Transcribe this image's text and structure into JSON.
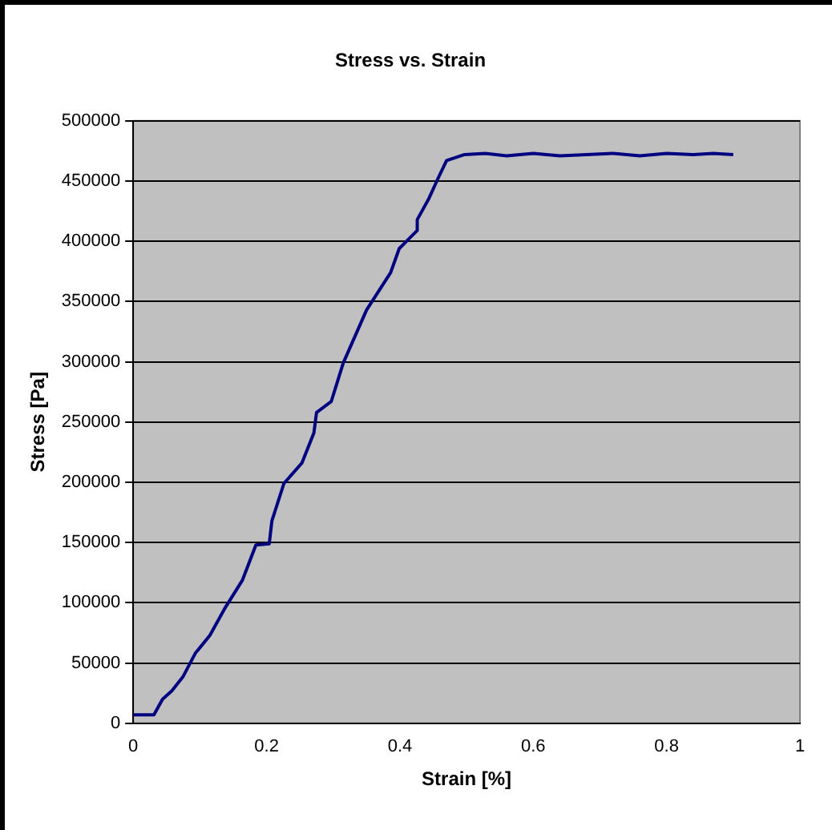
{
  "chart_data": {
    "type": "line",
    "title": "Stress vs. Strain",
    "xlabel": "Strain [%]",
    "ylabel": "Stress [Pa]",
    "x": [
      0,
      0.031,
      0.044,
      0.058,
      0.075,
      0.093,
      0.115,
      0.137,
      0.164,
      0.184,
      0.204,
      0.208,
      0.226,
      0.253,
      0.271,
      0.275,
      0.297,
      0.315,
      0.35,
      0.386,
      0.399,
      0.426,
      0.426,
      0.443,
      0.457,
      0.47,
      0.497,
      0.528,
      0.56,
      0.6,
      0.64,
      0.68,
      0.72,
      0.76,
      0.8,
      0.84,
      0.87,
      0.9
    ],
    "series": [
      {
        "color": "#000080",
        "values": [
          7000,
          7000,
          20000,
          27000,
          39000,
          58000,
          73000,
          95000,
          119000,
          148000,
          149000,
          168000,
          199000,
          216000,
          241000,
          258000,
          267000,
          299000,
          343000,
          374000,
          394000,
          409000,
          418000,
          435000,
          452000,
          467000,
          472000,
          473000,
          471000,
          473000,
          471000,
          472000,
          473000,
          471000,
          473000,
          472000,
          473000,
          472000
        ]
      }
    ],
    "xlim": [
      0,
      1
    ],
    "xticks": [
      0,
      0.2,
      0.4,
      0.6,
      0.8,
      1
    ],
    "ylim": [
      0,
      500000
    ],
    "yticks": [
      0,
      50000,
      100000,
      150000,
      200000,
      250000,
      300000,
      350000,
      400000,
      450000,
      500000
    ],
    "grid": "y",
    "marker": "none",
    "line_style": "solid",
    "legend": false
  }
}
